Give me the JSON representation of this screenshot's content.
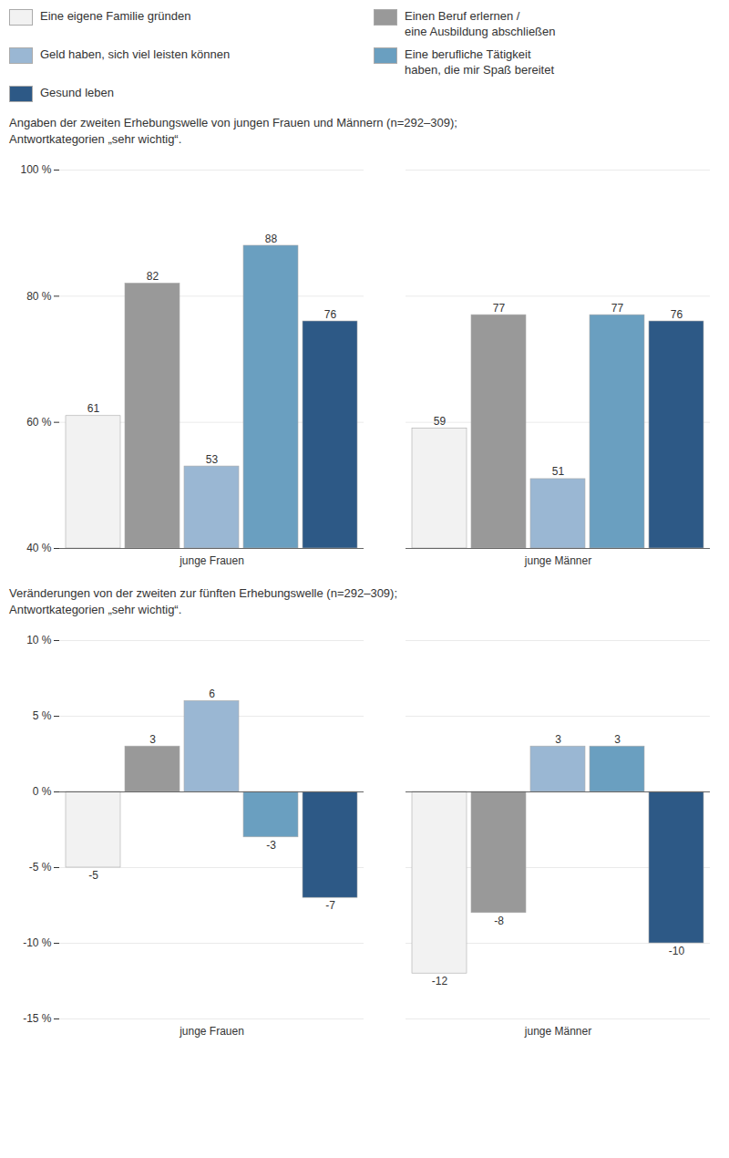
{
  "chart_data": [
    {
      "type": "bar",
      "subtitle": "Angaben der zweiten Erhebungswelle von jungen Frauen und Männern (n=292–309);\nAntwortkategorien „sehr wichtig“.",
      "categories": [
        "junge Frauen",
        "junge Männer"
      ],
      "series": [
        {
          "name": "Eine eigene Familie gründen",
          "color": "#f2f2f2",
          "values": [
            61,
            59
          ]
        },
        {
          "name": "Einen Beruf erlernen /\neine Ausbildung abschließen",
          "color": "#999999",
          "values": [
            82,
            77
          ]
        },
        {
          "name": "Geld haben, sich viel leisten können",
          "color": "#9ab7d3",
          "values": [
            53,
            51
          ]
        },
        {
          "name": "Eine berufliche Tätigkeit\nhaben, die mir Spaß bereitet",
          "color": "#6a9fc0",
          "values": [
            88,
            77
          ]
        },
        {
          "name": "Gesund leben",
          "color": "#2d5986",
          "values": [
            76,
            76
          ]
        }
      ],
      "ylim": [
        40,
        100
      ],
      "yticks": [
        {
          "value": 40,
          "label": "40 %"
        },
        {
          "value": 60,
          "label": "60 %"
        },
        {
          "value": 80,
          "label": "80 %"
        },
        {
          "value": 100,
          "label": "100 %"
        }
      ],
      "grid": true,
      "data_labels": true,
      "legend": "top"
    },
    {
      "type": "bar",
      "subtitle": "Veränderungen von der zweiten zur fünften Erhebungswelle (n=292–309);\nAntwortkategorien „sehr wichtig“.",
      "categories": [
        "junge Frauen",
        "junge Männer"
      ],
      "series": [
        {
          "name": "Eine eigene Familie gründen",
          "color": "#f2f2f2",
          "values": [
            -5,
            -12
          ]
        },
        {
          "name": "Einen Beruf erlernen /\neine Ausbildung abschließen",
          "color": "#999999",
          "values": [
            3,
            -8
          ]
        },
        {
          "name": "Geld haben, sich viel leisten können",
          "color": "#9ab7d3",
          "values": [
            6,
            3
          ]
        },
        {
          "name": "Eine berufliche Tätigkeit\nhaben, die mir Spaß bereitet",
          "color": "#6a9fc0",
          "values": [
            -3,
            3
          ]
        },
        {
          "name": "Gesund leben",
          "color": "#2d5986",
          "values": [
            -7,
            -10
          ]
        }
      ],
      "ylim": [
        -15,
        10
      ],
      "yticks": [
        {
          "value": -15,
          "label": "-15 %"
        },
        {
          "value": -10,
          "label": "-10 %"
        },
        {
          "value": -5,
          "label": "-5 %"
        },
        {
          "value": 0,
          "label": "0 %"
        },
        {
          "value": 5,
          "label": "5 %"
        },
        {
          "value": 10,
          "label": "10 %"
        }
      ],
      "grid": true,
      "data_labels": true
    }
  ]
}
